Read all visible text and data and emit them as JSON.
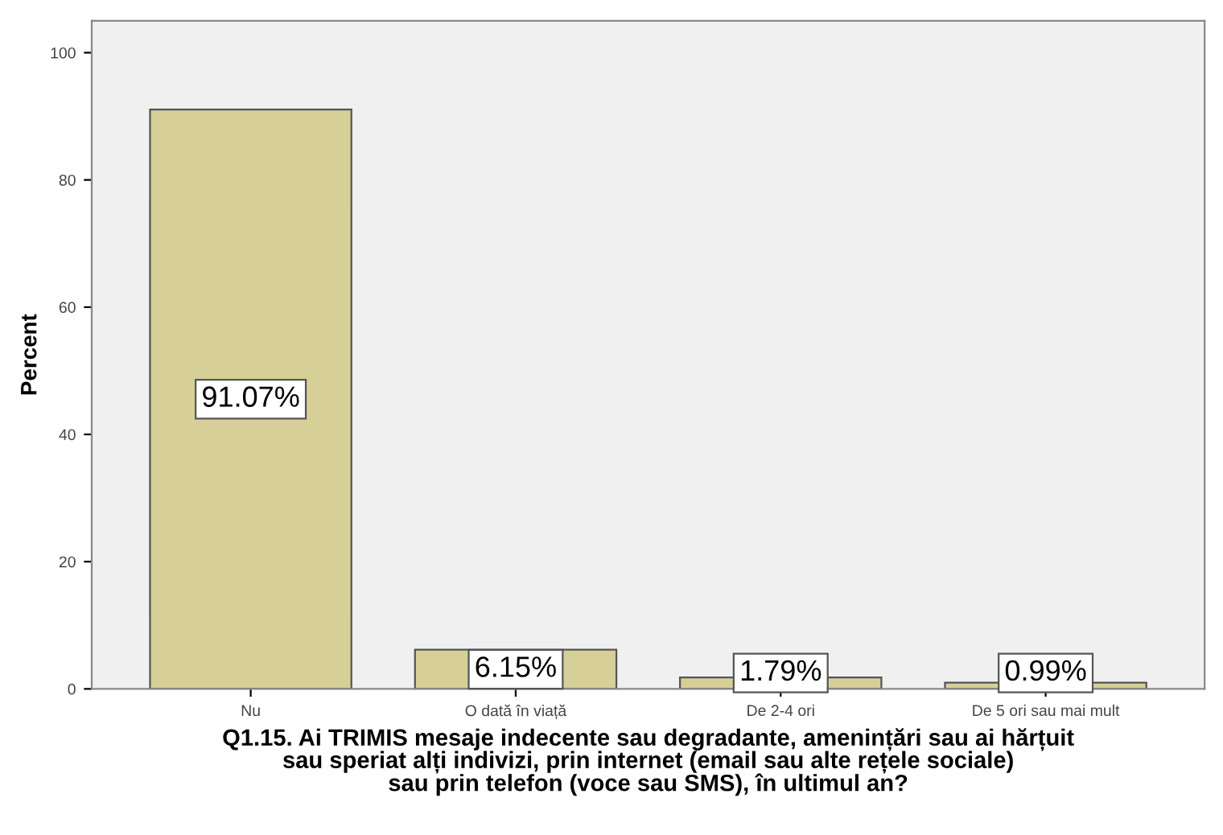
{
  "chart_data": {
    "type": "bar",
    "xlabel": "Q1.15. Ai TRIMIS mesaje indecente sau degradante, amenințări sau ai hărțuit\nsau speriat alți indivizi, prin internet (email sau alte rețele sociale)\nsau prin telefon (voce sau SMS), în ultimul an?",
    "ylabel": "Percent",
    "categories": [
      "Nu",
      "O dată în viață",
      "De 2-4 ori",
      "De 5 ori sau mai mult"
    ],
    "values": [
      91.07,
      6.15,
      1.79,
      0.99
    ],
    "value_labels": [
      "91.07%",
      "6.15%",
      "1.79%",
      "0.99%"
    ],
    "color": "#d6cf98",
    "ylim": [
      0,
      105
    ],
    "yticks": [
      0,
      20,
      40,
      60,
      80,
      100
    ],
    "grid": false,
    "legend": false
  }
}
